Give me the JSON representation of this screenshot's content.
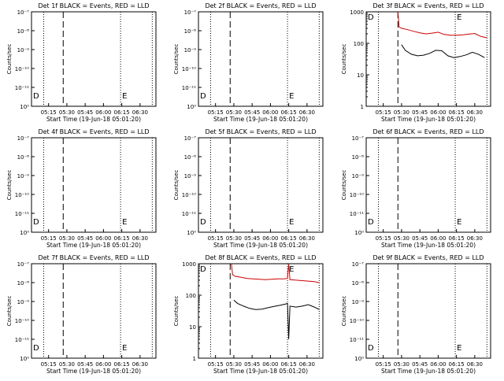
{
  "colors": {
    "events": "#000000",
    "lld": "#cc0000",
    "axes": "#000000",
    "background": "#ffffff"
  },
  "chart_data": [
    {
      "type": "line",
      "title": "Det 1f BLACK = Events, RED = LLD",
      "xlabel": "Start Time (19-Jun-18 05:01:20)",
      "ylabel": "Counts/sec",
      "x_ticks": [
        "05:15",
        "05:30",
        "05:45",
        "06:00",
        "06:15",
        "06:30"
      ],
      "y_ticks": [
        "10⁰",
        "10⁻¹¹",
        "10⁻¹⁰",
        "10⁻⁹",
        "10⁻⁸",
        "10⁻⁷"
      ],
      "markers": [
        {
          "label": "D",
          "position": "left"
        },
        {
          "label": "E",
          "position": "right"
        }
      ],
      "series": []
    },
    {
      "type": "line",
      "title": "Det 2f BLACK = Events, RED = LLD",
      "xlabel": "Start Time (19-Jun-18 05:01:20)",
      "ylabel": "Counts/sec",
      "x_ticks": [
        "05:15",
        "05:30",
        "05:45",
        "06:00",
        "06:15",
        "06:30"
      ],
      "y_ticks": [
        "10⁰",
        "10⁻¹¹",
        "10⁻¹⁰",
        "10⁻⁹",
        "10⁻⁸",
        "10⁻⁷"
      ],
      "markers": [
        {
          "label": "D",
          "position": "left"
        },
        {
          "label": "E",
          "position": "right"
        }
      ],
      "series": []
    },
    {
      "type": "line",
      "title": "Det 3f BLACK = Events, RED = LLD",
      "xlabel": "Start Time (19-Jun-18 05:01:20)",
      "ylabel": "Counts/sec",
      "x_ticks": [
        "05:15",
        "05:30",
        "05:45",
        "06:00",
        "06:15",
        "06:30"
      ],
      "y_ticks": [
        "1",
        "10",
        "100",
        "1000"
      ],
      "markers": [
        {
          "label": "D",
          "position": "left"
        },
        {
          "label": "E",
          "position": "right"
        }
      ],
      "series": [
        {
          "color": "lld",
          "x": [
            "05:27",
            "05:28",
            "05:30",
            "05:35",
            "05:40",
            "05:45",
            "05:50",
            "05:55",
            "06:00",
            "06:05",
            "06:10",
            "06:15",
            "06:20",
            "06:25",
            "06:30",
            "06:35",
            "06:40"
          ],
          "y": [
            1000,
            330,
            300,
            270,
            240,
            215,
            200,
            210,
            225,
            190,
            180,
            180,
            185,
            195,
            205,
            165,
            150
          ]
        },
        {
          "color": "events",
          "x": [
            "05:30",
            "05:33",
            "05:38",
            "05:43",
            "05:48",
            "05:53",
            "05:58",
            "06:03",
            "06:08",
            "06:13",
            "06:18",
            "06:23",
            "06:28",
            "06:33",
            "06:38"
          ],
          "y": [
            90,
            60,
            45,
            40,
            42,
            48,
            60,
            58,
            40,
            35,
            38,
            43,
            52,
            45,
            35
          ]
        }
      ]
    },
    {
      "type": "line",
      "title": "Det 4f BLACK = Events, RED = LLD",
      "xlabel": "Start Time (19-Jun-18 05:01:20)",
      "ylabel": "Counts/sec",
      "x_ticks": [
        "05:15",
        "05:30",
        "05:45",
        "06:00",
        "06:15",
        "06:30"
      ],
      "y_ticks": [
        "10⁰",
        "10⁻¹¹",
        "10⁻¹⁰",
        "10⁻⁹",
        "10⁻⁸",
        "10⁻⁷"
      ],
      "markers": [
        {
          "label": "D",
          "position": "left"
        },
        {
          "label": "E",
          "position": "right"
        }
      ],
      "series": []
    },
    {
      "type": "line",
      "title": "Det 5f BLACK = Events, RED = LLD",
      "xlabel": "Start Time (19-Jun-18 05:01:20)",
      "ylabel": "Counts/sec",
      "x_ticks": [
        "05:15",
        "05:30",
        "05:45",
        "06:00",
        "06:15",
        "06:30"
      ],
      "y_ticks": [
        "10⁰",
        "10⁻¹¹",
        "10⁻¹⁰",
        "10⁻⁹",
        "10⁻⁸",
        "10⁻⁷"
      ],
      "markers": [
        {
          "label": "D",
          "position": "left"
        },
        {
          "label": "E",
          "position": "right"
        }
      ],
      "series": []
    },
    {
      "type": "line",
      "title": "Det 6f BLACK = Events, RED = LLD",
      "xlabel": "Start Time (19-Jun-18 05:01:20)",
      "ylabel": "Counts/sec",
      "x_ticks": [
        "05:15",
        "05:30",
        "05:45",
        "06:00",
        "06:15",
        "06:30"
      ],
      "y_ticks": [
        "10⁰",
        "10⁻¹¹",
        "10⁻¹⁰",
        "10⁻⁹",
        "10⁻⁸",
        "10⁻⁷"
      ],
      "markers": [
        {
          "label": "D",
          "position": "left"
        },
        {
          "label": "E",
          "position": "right"
        }
      ],
      "series": []
    },
    {
      "type": "line",
      "title": "Det 7f BLACK = Events, RED = LLD",
      "xlabel": "Start Time (19-Jun-18 05:01:20)",
      "ylabel": "Counts/sec",
      "x_ticks": [
        "05:15",
        "05:30",
        "05:45",
        "06:00",
        "06:15",
        "06:30"
      ],
      "y_ticks": [
        "10⁰",
        "10⁻¹¹",
        "10⁻¹⁰",
        "10⁻⁹",
        "10⁻⁸",
        "10⁻⁷"
      ],
      "markers": [
        {
          "label": "D",
          "position": "left"
        },
        {
          "label": "E",
          "position": "right"
        }
      ],
      "series": []
    },
    {
      "type": "line",
      "title": "Det 8f BLACK = Events, RED = LLD",
      "xlabel": "Start Time (19-Jun-18 05:01:20)",
      "ylabel": "Counts/sec",
      "x_ticks": [
        "05:15",
        "05:30",
        "05:45",
        "06:00",
        "06:15",
        "06:30"
      ],
      "y_ticks": [
        "1",
        "10",
        "100",
        "1000"
      ],
      "markers": [
        {
          "label": "D",
          "position": "left"
        },
        {
          "label": "E",
          "position": "right"
        }
      ],
      "series": [
        {
          "color": "lld",
          "x": [
            "05:28",
            "05:29",
            "05:31",
            "05:36",
            "05:41",
            "05:46",
            "05:51",
            "05:56",
            "06:01",
            "06:06",
            "06:11",
            "06:14",
            "06:15",
            "06:16",
            "06:21",
            "06:26",
            "06:31",
            "06:36",
            "06:40"
          ],
          "y": [
            1000,
            450,
            400,
            370,
            340,
            330,
            320,
            310,
            320,
            330,
            330,
            340,
            1000,
            310,
            300,
            290,
            280,
            270,
            250
          ]
        },
        {
          "color": "events",
          "x": [
            "05:30",
            "05:33",
            "05:38",
            "05:43",
            "05:48",
            "05:53",
            "05:58",
            "06:03",
            "06:08",
            "06:12",
            "06:14",
            "06:15",
            "06:16",
            "06:21",
            "06:26",
            "06:31",
            "06:36",
            "06:40"
          ],
          "y": [
            70,
            55,
            45,
            38,
            35,
            36,
            40,
            44,
            48,
            52,
            55,
            4,
            45,
            42,
            45,
            50,
            42,
            35
          ]
        }
      ]
    },
    {
      "type": "line",
      "title": "Det 9f BLACK = Events, RED = LLD",
      "xlabel": "Start Time (19-Jun-18 05:01:20)",
      "ylabel": "Counts/sec",
      "x_ticks": [
        "05:15",
        "05:30",
        "05:45",
        "06:00",
        "06:15",
        "06:30"
      ],
      "y_ticks": [
        "10⁰",
        "10⁻¹¹",
        "10⁻¹⁰",
        "10⁻⁹",
        "10⁻⁸",
        "10⁻⁷"
      ],
      "markers": [
        {
          "label": "D",
          "position": "left"
        },
        {
          "label": "E",
          "position": "right"
        }
      ],
      "series": []
    }
  ]
}
